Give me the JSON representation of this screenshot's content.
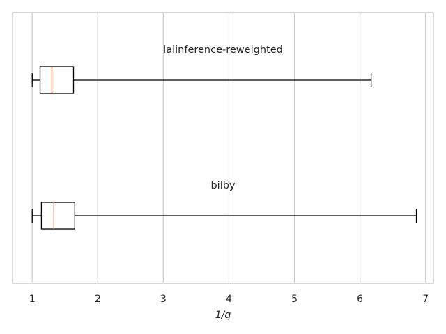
{
  "chart_data": {
    "type": "boxplot",
    "orientation": "horizontal",
    "xlabel": "1/q",
    "xlim": [
      0.7,
      7.12
    ],
    "xticks": [
      1,
      2,
      3,
      4,
      5,
      6,
      7
    ],
    "grid": "vertical",
    "colors": {
      "box": "#000000",
      "median": "#e8865a",
      "grid": "#cccccc",
      "frame": "#cccccc",
      "text": "#262626"
    },
    "series": [
      {
        "name": "lalinference-reweighted",
        "whisker_low": 1.0,
        "q1": 1.12,
        "median": 1.3,
        "q3": 1.63,
        "whisker_high": 6.17
      },
      {
        "name": "bilby",
        "whisker_low": 1.0,
        "q1": 1.14,
        "median": 1.33,
        "q3": 1.65,
        "whisker_high": 6.86
      }
    ]
  }
}
